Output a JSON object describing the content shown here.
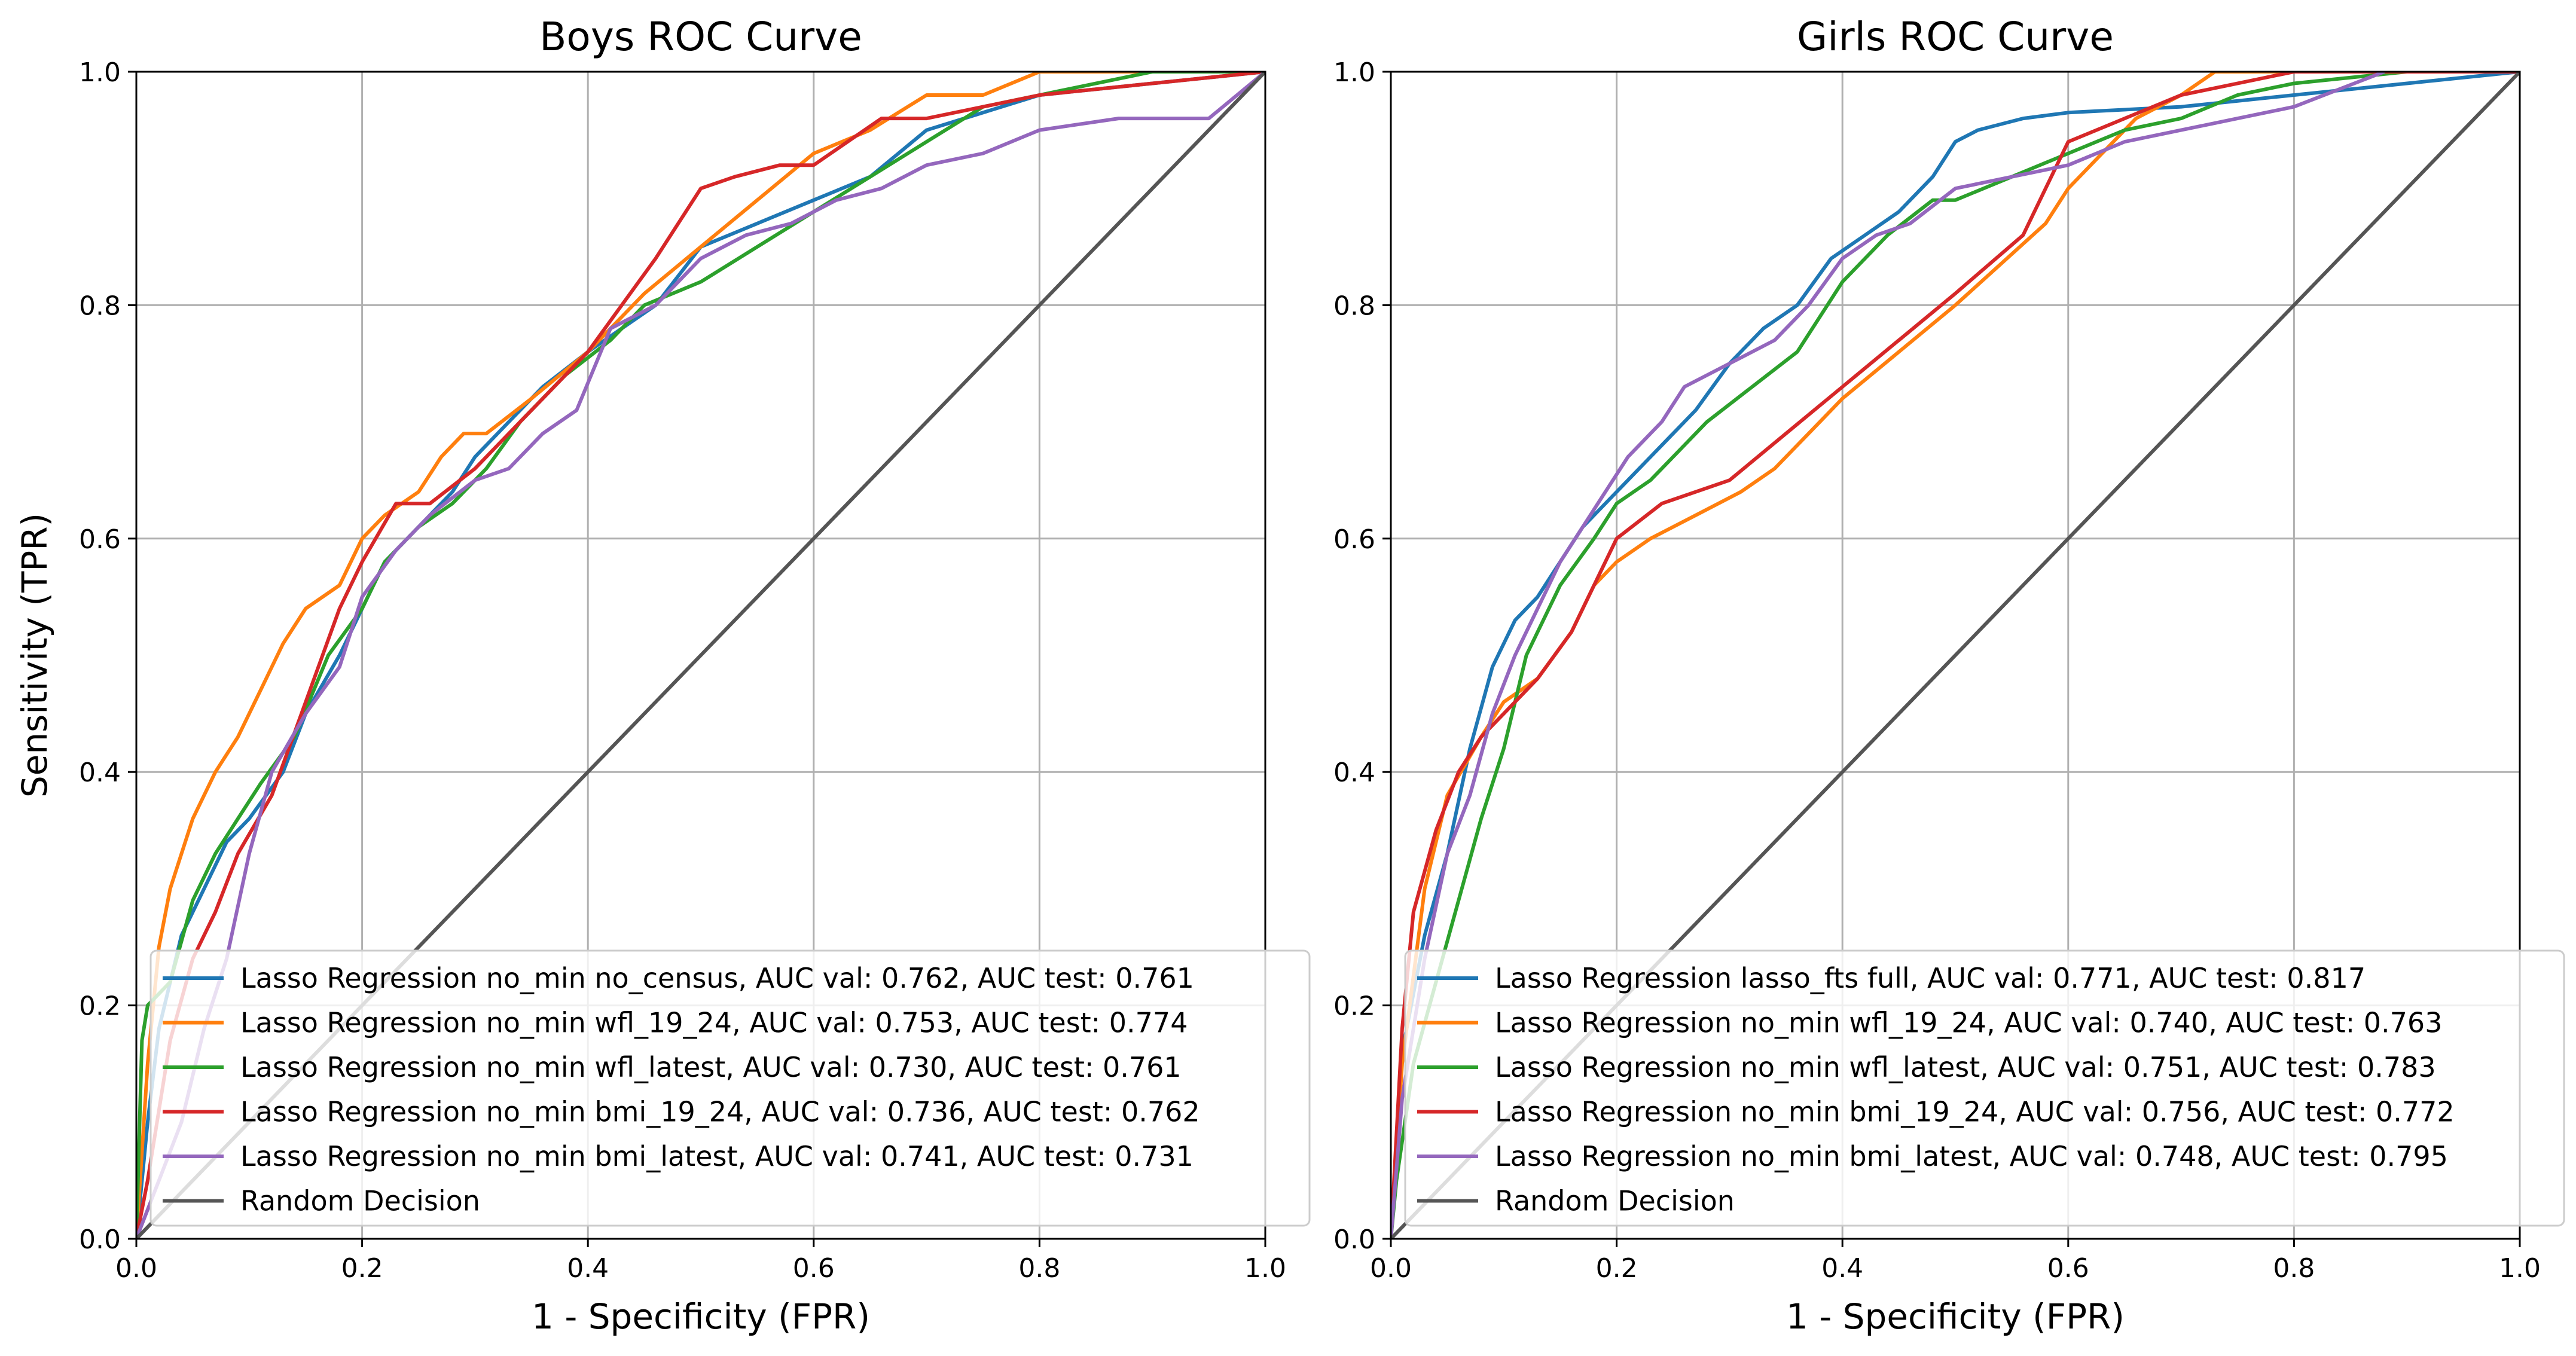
{
  "chart_data": [
    {
      "type": "line",
      "title": "Boys ROC Curve",
      "xlabel": "1 - Specificity (FPR)",
      "ylabel": "Sensitivity (TPR)",
      "xlim": [
        0.0,
        1.0
      ],
      "ylim": [
        0.0,
        1.0
      ],
      "xticks": [
        "0.0",
        "0.2",
        "0.4",
        "0.6",
        "0.8",
        "1.0"
      ],
      "yticks": [
        "0.0",
        "0.2",
        "0.4",
        "0.6",
        "0.8",
        "1.0"
      ],
      "grid": true,
      "legend_position": "lower-right",
      "series": [
        {
          "name": "Lasso Regression no_min no_census, AUC val: 0.762, AUC test: 0.761",
          "color": "#1f77b4",
          "x": [
            0,
            0.01,
            0.02,
            0.04,
            0.06,
            0.08,
            0.1,
            0.13,
            0.15,
            0.18,
            0.2,
            0.22,
            0.25,
            0.28,
            0.3,
            0.33,
            0.36,
            0.4,
            0.43,
            0.46,
            0.5,
            0.55,
            0.6,
            0.65,
            0.7,
            0.8,
            0.9,
            1.0
          ],
          "y": [
            0,
            0.1,
            0.18,
            0.26,
            0.3,
            0.34,
            0.36,
            0.4,
            0.45,
            0.5,
            0.54,
            0.58,
            0.61,
            0.64,
            0.67,
            0.7,
            0.73,
            0.76,
            0.78,
            0.8,
            0.85,
            0.87,
            0.89,
            0.91,
            0.95,
            0.98,
            0.99,
            1.0
          ]
        },
        {
          "name": "Lasso Regression no_min wfl_19_24, AUC val: 0.753, AUC test: 0.774",
          "color": "#ff7f0e",
          "x": [
            0,
            0.01,
            0.02,
            0.03,
            0.04,
            0.05,
            0.07,
            0.09,
            0.11,
            0.13,
            0.15,
            0.18,
            0.2,
            0.22,
            0.25,
            0.27,
            0.29,
            0.31,
            0.35,
            0.4,
            0.45,
            0.5,
            0.55,
            0.6,
            0.65,
            0.7,
            0.75,
            0.8,
            1.0
          ],
          "y": [
            0,
            0.15,
            0.25,
            0.3,
            0.33,
            0.36,
            0.4,
            0.43,
            0.47,
            0.51,
            0.54,
            0.56,
            0.6,
            0.62,
            0.64,
            0.67,
            0.69,
            0.69,
            0.72,
            0.76,
            0.81,
            0.85,
            0.89,
            0.93,
            0.95,
            0.98,
            0.98,
            1.0,
            1.0
          ]
        },
        {
          "name": "Lasso Regression no_min wfl_latest, AUC val: 0.730, AUC test: 0.761",
          "color": "#2ca02c",
          "x": [
            0,
            0.005,
            0.01,
            0.03,
            0.05,
            0.07,
            0.09,
            0.11,
            0.14,
            0.17,
            0.2,
            0.22,
            0.25,
            0.28,
            0.31,
            0.34,
            0.38,
            0.42,
            0.45,
            0.5,
            0.55,
            0.6,
            0.65,
            0.7,
            0.75,
            0.8,
            0.9,
            1.0
          ],
          "y": [
            0,
            0.17,
            0.2,
            0.22,
            0.29,
            0.33,
            0.36,
            0.39,
            0.43,
            0.5,
            0.54,
            0.58,
            0.61,
            0.63,
            0.66,
            0.7,
            0.74,
            0.77,
            0.8,
            0.82,
            0.85,
            0.88,
            0.91,
            0.94,
            0.97,
            0.98,
            1.0,
            1.0
          ]
        },
        {
          "name": "Lasso Regression no_min bmi_19_24, AUC val: 0.736, AUC test: 0.762",
          "color": "#d62728",
          "x": [
            0,
            0.01,
            0.03,
            0.05,
            0.07,
            0.09,
            0.12,
            0.15,
            0.18,
            0.2,
            0.23,
            0.26,
            0.3,
            0.33,
            0.36,
            0.4,
            0.43,
            0.46,
            0.5,
            0.53,
            0.57,
            0.6,
            0.63,
            0.66,
            0.7,
            0.75,
            0.8,
            0.9,
            1.0
          ],
          "y": [
            0,
            0.05,
            0.17,
            0.24,
            0.28,
            0.33,
            0.38,
            0.46,
            0.54,
            0.58,
            0.63,
            0.63,
            0.66,
            0.69,
            0.72,
            0.76,
            0.8,
            0.84,
            0.9,
            0.91,
            0.92,
            0.92,
            0.94,
            0.96,
            0.96,
            0.97,
            0.98,
            0.99,
            1.0
          ]
        },
        {
          "name": "Lasso Regression no_min bmi_latest, AUC val: 0.741, AUC test: 0.731",
          "color": "#9467bd",
          "x": [
            0,
            0.02,
            0.04,
            0.06,
            0.08,
            0.1,
            0.12,
            0.15,
            0.18,
            0.2,
            0.23,
            0.26,
            0.3,
            0.33,
            0.36,
            0.39,
            0.42,
            0.46,
            0.5,
            0.54,
            0.58,
            0.62,
            0.66,
            0.7,
            0.75,
            0.8,
            0.87,
            0.95,
            1.0
          ],
          "y": [
            0,
            0.05,
            0.1,
            0.18,
            0.24,
            0.33,
            0.4,
            0.45,
            0.49,
            0.55,
            0.59,
            0.62,
            0.65,
            0.66,
            0.69,
            0.71,
            0.78,
            0.8,
            0.84,
            0.86,
            0.87,
            0.89,
            0.9,
            0.92,
            0.93,
            0.95,
            0.96,
            0.96,
            1.0
          ]
        },
        {
          "name": "Random Decision",
          "color": "#555555",
          "x": [
            0,
            1
          ],
          "y": [
            0,
            1
          ]
        }
      ]
    },
    {
      "type": "line",
      "title": "Girls ROC Curve",
      "xlabel": "1 - Specificity (FPR)",
      "ylabel": "",
      "xlim": [
        0.0,
        1.0
      ],
      "ylim": [
        0.0,
        1.0
      ],
      "xticks": [
        "0.0",
        "0.2",
        "0.4",
        "0.6",
        "0.8",
        "1.0"
      ],
      "yticks": [
        "0.0",
        "0.2",
        "0.4",
        "0.6",
        "0.8",
        "1.0"
      ],
      "grid": true,
      "legend_position": "lower-right",
      "series": [
        {
          "name": "Lasso Regression lasso_fts full, AUC val: 0.771, AUC test: 0.817",
          "color": "#1f77b4",
          "x": [
            0,
            0.01,
            0.03,
            0.05,
            0.07,
            0.09,
            0.11,
            0.13,
            0.15,
            0.17,
            0.2,
            0.23,
            0.27,
            0.3,
            0.33,
            0.36,
            0.39,
            0.42,
            0.45,
            0.48,
            0.5,
            0.52,
            0.56,
            0.6,
            0.7,
            0.8,
            0.9,
            1.0
          ],
          "y": [
            0,
            0.16,
            0.26,
            0.33,
            0.42,
            0.49,
            0.53,
            0.55,
            0.58,
            0.61,
            0.64,
            0.67,
            0.71,
            0.75,
            0.78,
            0.8,
            0.84,
            0.86,
            0.88,
            0.91,
            0.94,
            0.95,
            0.96,
            0.965,
            0.97,
            0.98,
            0.99,
            1.0
          ]
        },
        {
          "name": "Lasso Regression no_min wfl_19_24, AUC val: 0.740, AUC test: 0.763",
          "color": "#ff7f0e",
          "x": [
            0,
            0.01,
            0.03,
            0.05,
            0.08,
            0.1,
            0.13,
            0.16,
            0.18,
            0.2,
            0.23,
            0.27,
            0.31,
            0.34,
            0.4,
            0.5,
            0.58,
            0.6,
            0.63,
            0.66,
            0.7,
            0.73,
            1.0
          ],
          "y": [
            0,
            0.15,
            0.3,
            0.38,
            0.43,
            0.46,
            0.48,
            0.52,
            0.56,
            0.58,
            0.6,
            0.62,
            0.64,
            0.66,
            0.72,
            0.8,
            0.87,
            0.9,
            0.93,
            0.96,
            0.98,
            1.0,
            1.0
          ]
        },
        {
          "name": "Lasso Regression no_min wfl_latest, AUC val: 0.751, AUC test: 0.783",
          "color": "#2ca02c",
          "x": [
            0,
            0.005,
            0.02,
            0.04,
            0.06,
            0.08,
            0.1,
            0.12,
            0.15,
            0.18,
            0.2,
            0.23,
            0.25,
            0.28,
            0.32,
            0.36,
            0.4,
            0.44,
            0.48,
            0.5,
            0.55,
            0.6,
            0.65,
            0.7,
            0.75,
            0.8,
            0.9,
            1.0
          ],
          "y": [
            0,
            0.05,
            0.15,
            0.22,
            0.29,
            0.36,
            0.42,
            0.5,
            0.56,
            0.6,
            0.63,
            0.65,
            0.67,
            0.7,
            0.73,
            0.76,
            0.82,
            0.86,
            0.89,
            0.89,
            0.91,
            0.93,
            0.95,
            0.96,
            0.98,
            0.99,
            1.0,
            1.0
          ]
        },
        {
          "name": "Lasso Regression no_min bmi_19_24, AUC val: 0.756, AUC test: 0.772",
          "color": "#d62728",
          "x": [
            0,
            0.01,
            0.02,
            0.04,
            0.06,
            0.08,
            0.1,
            0.13,
            0.16,
            0.18,
            0.2,
            0.24,
            0.3,
            0.35,
            0.4,
            0.45,
            0.5,
            0.56,
            0.58,
            0.6,
            0.65,
            0.7,
            0.8,
            0.9,
            1.0
          ],
          "y": [
            0,
            0.18,
            0.28,
            0.35,
            0.4,
            0.43,
            0.45,
            0.48,
            0.52,
            0.56,
            0.6,
            0.63,
            0.65,
            0.69,
            0.73,
            0.77,
            0.81,
            0.86,
            0.9,
            0.94,
            0.96,
            0.98,
            1.0,
            1.0,
            1.0
          ]
        },
        {
          "name": "Lasso Regression no_min bmi_latest, AUC val: 0.748, AUC test: 0.795",
          "color": "#9467bd",
          "x": [
            0,
            0.01,
            0.03,
            0.05,
            0.07,
            0.09,
            0.11,
            0.13,
            0.15,
            0.17,
            0.19,
            0.21,
            0.24,
            0.26,
            0.3,
            0.34,
            0.37,
            0.4,
            0.43,
            0.46,
            0.5,
            0.55,
            0.6,
            0.65,
            0.7,
            0.75,
            0.8,
            0.88
          ],
          "y": [
            0,
            0.12,
            0.24,
            0.33,
            0.38,
            0.45,
            0.5,
            0.54,
            0.58,
            0.61,
            0.64,
            0.67,
            0.7,
            0.73,
            0.75,
            0.77,
            0.8,
            0.84,
            0.86,
            0.87,
            0.9,
            0.91,
            0.92,
            0.94,
            0.95,
            0.96,
            0.97,
            1.0
          ]
        },
        {
          "name": "Random Decision",
          "color": "#555555",
          "x": [
            0,
            1
          ],
          "y": [
            0,
            1
          ]
        }
      ]
    }
  ]
}
